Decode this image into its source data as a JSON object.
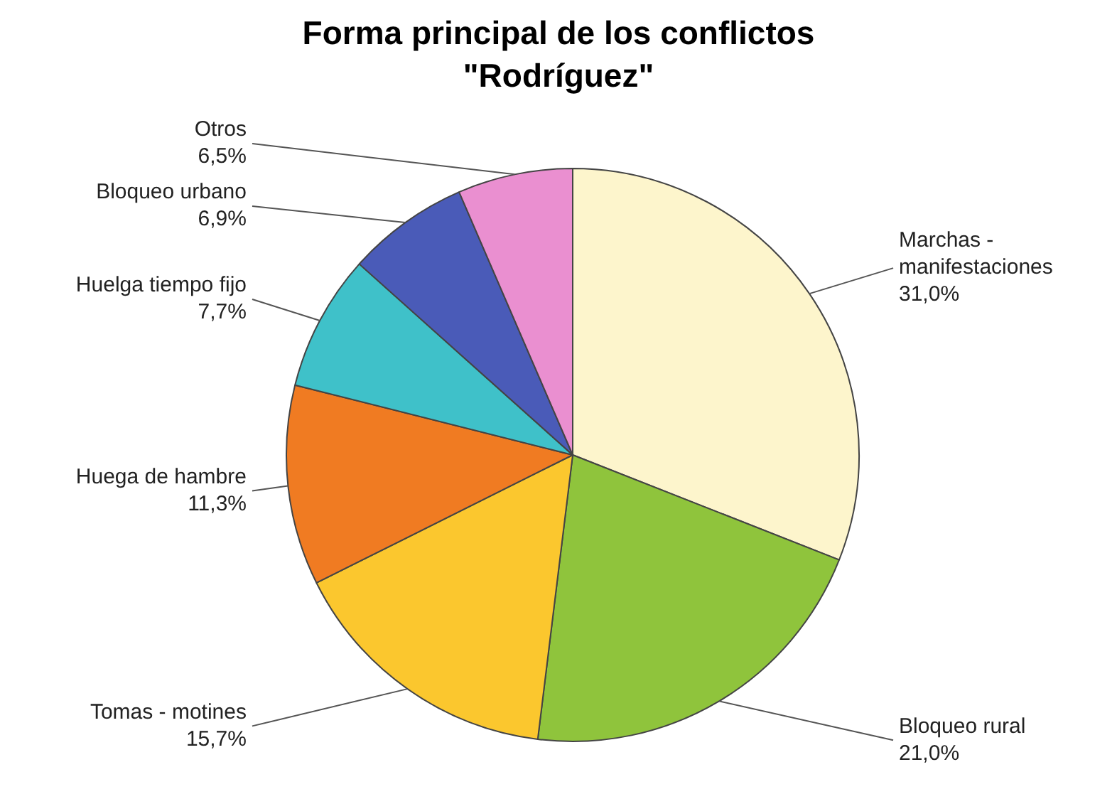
{
  "chart_data": {
    "type": "pie",
    "title": "Forma principal de los conflictos \"Rodríguez\"",
    "categories": [
      "Marchas - manifestaciones",
      "Bloqueo rural",
      "Tomas - motines",
      "Huega de hambre",
      "Huelga tiempo fijo",
      "Bloqueo urbano",
      "Otros"
    ],
    "values": [
      31.0,
      21.0,
      15.7,
      11.3,
      7.7,
      6.9,
      6.5
    ],
    "value_labels": [
      "31,0%",
      "21,0%",
      "15,7%",
      "11,3%",
      "7,7%",
      "6,9%",
      "6,5%"
    ],
    "colors": [
      "#fdf5cc",
      "#8fc43c",
      "#fbc72e",
      "#f07b22",
      "#3fc1c9",
      "#4a5bb8",
      "#ea8fd0"
    ],
    "legend": false
  }
}
